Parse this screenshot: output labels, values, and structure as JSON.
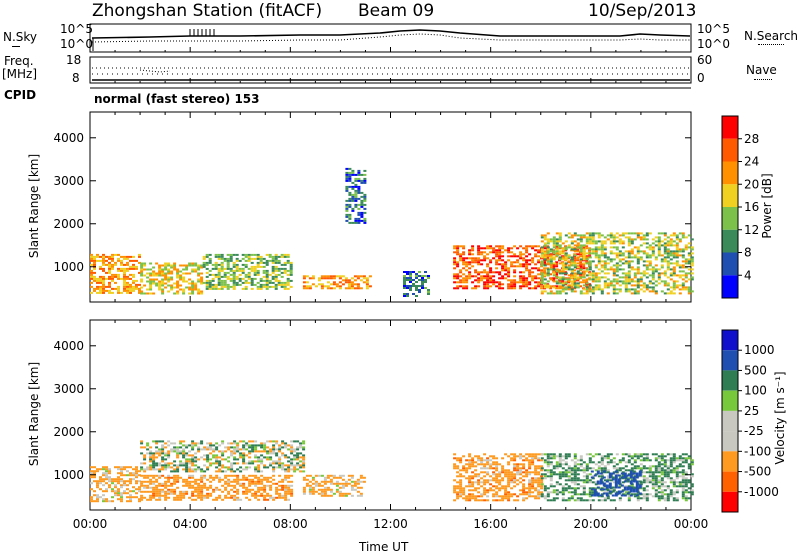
{
  "header": {
    "station": "Zhongshan Station (fitACF)",
    "beam": "Beam 09",
    "date": "10/Sep/2013"
  },
  "top_panels": {
    "nsky_label": "N.Sky",
    "nsky_ticks": [
      "10^5",
      "10^0"
    ],
    "nsearch_label": "N.Search",
    "nsearch_ticks": [
      "10^5",
      "10^0"
    ],
    "freq_label": "Freq.",
    "freq_unit": "[MHz]",
    "freq_ticks": [
      "18",
      "8"
    ],
    "nave_label": "Nave",
    "nave_ticks": [
      "60",
      "0"
    ],
    "cpid_label": "CPID",
    "cpid_value": "normal (fast stereo) 153"
  },
  "colors": {
    "power_scale": [
      "#0000ff",
      "#1f4fb0",
      "#3a8a5a",
      "#7cc24a",
      "#f0d020",
      "#ff9000",
      "#ff5a00",
      "#ff0000"
    ],
    "velocity_scale": [
      "#ff0000",
      "#ff6000",
      "#ff9a20",
      "#c8c8c0",
      "#c8c8c0",
      "#78c83c",
      "#2f7d52",
      "#1f4fb0",
      "#1010cc"
    ]
  },
  "chart_data": [
    {
      "type": "heatmap",
      "title": "",
      "ylabel": "Slant Range [km]",
      "ylim": [
        180,
        4600
      ],
      "yticks": [
        1000,
        2000,
        3000,
        4000
      ],
      "x": [
        "00:00",
        "04:00",
        "08:00",
        "12:00",
        "16:00",
        "20:00",
        "00:00"
      ],
      "xlabel": "",
      "colorbar": {
        "label": "Power [dB]",
        "ticks": [
          "28",
          "24",
          "20",
          "16",
          "12",
          "8",
          "4"
        ]
      },
      "regions_hours_km": [
        {
          "x": [
            0.0,
            2.0
          ],
          "y": [
            400,
            1300
          ],
          "value": 22
        },
        {
          "x": [
            2.0,
            4.5
          ],
          "y": [
            400,
            1100
          ],
          "value": 18
        },
        {
          "x": [
            4.5,
            8.0
          ],
          "y": [
            500,
            1300
          ],
          "value": 14
        },
        {
          "x": [
            8.5,
            11.2
          ],
          "y": [
            500,
            800
          ],
          "value": 22
        },
        {
          "x": [
            10.2,
            11.0
          ],
          "y": [
            2000,
            3300
          ],
          "value": 8
        },
        {
          "x": [
            12.5,
            13.5
          ],
          "y": [
            300,
            900
          ],
          "value": 8
        },
        {
          "x": [
            14.5,
            20.0
          ],
          "y": [
            500,
            1500
          ],
          "value": 26
        },
        {
          "x": [
            18.0,
            24.0
          ],
          "y": [
            400,
            1800
          ],
          "value": 16
        }
      ]
    },
    {
      "type": "heatmap",
      "title": "",
      "ylabel": "Slant Range [km]",
      "ylim": [
        180,
        4600
      ],
      "yticks": [
        1000,
        2000,
        3000,
        4000
      ],
      "x": [
        "00:00",
        "04:00",
        "08:00",
        "12:00",
        "16:00",
        "20:00",
        "00:00"
      ],
      "xlabel": "Time UT",
      "colorbar": {
        "label": "Velocity [m s⁻¹]",
        "ticks": [
          "1000",
          "500",
          "100",
          "25",
          "-25",
          "-100",
          "-500",
          "-1000"
        ]
      },
      "regions_hours_km": [
        {
          "x": [
            0.0,
            2.0
          ],
          "y": [
            400,
            1200
          ],
          "value": -200
        },
        {
          "x": [
            2.0,
            8.5
          ],
          "y": [
            1100,
            1800
          ],
          "value": 0
        },
        {
          "x": [
            2.0,
            8.0
          ],
          "y": [
            400,
            1000
          ],
          "value": -300
        },
        {
          "x": [
            8.5,
            11.0
          ],
          "y": [
            500,
            1000
          ],
          "value": -200
        },
        {
          "x": [
            14.5,
            18.0
          ],
          "y": [
            400,
            1500
          ],
          "value": -300
        },
        {
          "x": [
            18.0,
            24.0
          ],
          "y": [
            400,
            1500
          ],
          "value": 150
        },
        {
          "x": [
            20.0,
            22.0
          ],
          "y": [
            500,
            1100
          ],
          "value": 700
        }
      ]
    }
  ]
}
